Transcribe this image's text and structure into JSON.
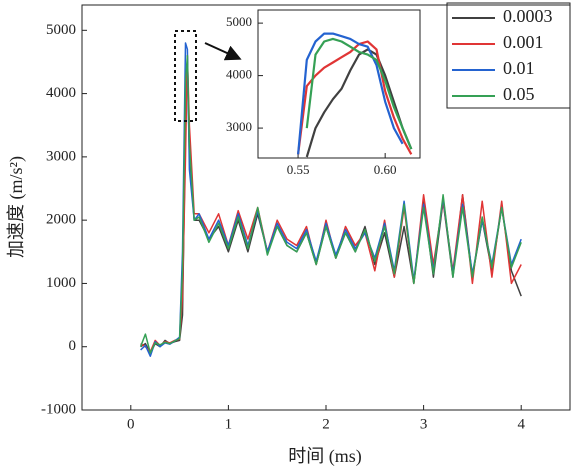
{
  "chart_data": [
    {
      "type": "line",
      "x_label": "时间 (ms)",
      "y_label": "加速度 (m/s²)",
      "x": [
        0.1,
        0.15,
        0.2,
        0.25,
        0.3,
        0.35,
        0.4,
        0.45,
        0.5,
        0.53,
        0.56,
        0.58,
        0.6,
        0.65,
        0.7,
        0.8,
        0.9,
        1.0,
        1.1,
        1.2,
        1.3,
        1.4,
        1.5,
        1.6,
        1.7,
        1.8,
        1.9,
        2.0,
        2.1,
        2.2,
        2.3,
        2.4,
        2.5,
        2.6,
        2.7,
        2.8,
        2.9,
        3.0,
        3.1,
        3.2,
        3.3,
        3.4,
        3.5,
        3.6,
        3.7,
        3.8,
        3.9,
        4.0
      ],
      "series": [
        {
          "name": "0.0003",
          "color": "#404040",
          "values": [
            0,
            50,
            -100,
            50,
            0,
            100,
            50,
            80,
            100,
            500,
            3500,
            4500,
            3000,
            2000,
            2000,
            1700,
            1900,
            1500,
            2000,
            1500,
            2100,
            1500,
            1900,
            1600,
            1500,
            1800,
            1300,
            1900,
            1400,
            1800,
            1500,
            1900,
            1300,
            1800,
            1100,
            1900,
            1000,
            2300,
            1100,
            2300,
            1100,
            2400,
            1100,
            2000,
            1200,
            2200,
            1200,
            800
          ]
        },
        {
          "name": "0.001",
          "color": "#e03535",
          "values": [
            50,
            0,
            -80,
            100,
            20,
            80,
            60,
            100,
            120,
            800,
            3000,
            4600,
            3500,
            2100,
            2100,
            1800,
            2100,
            1600,
            2150,
            1700,
            2200,
            1500,
            2000,
            1700,
            1600,
            1900,
            1300,
            2000,
            1400,
            1900,
            1600,
            1800,
            1200,
            2000,
            1100,
            2200,
            1000,
            2400,
            1300,
            2300,
            1200,
            2400,
            1000,
            2300,
            1100,
            2300,
            1000,
            1300
          ]
        },
        {
          "name": "0.01",
          "color": "#2463d0",
          "values": [
            -50,
            20,
            -150,
            80,
            0,
            60,
            40,
            90,
            150,
            1500,
            4800,
            4700,
            2800,
            2000,
            2100,
            1700,
            2000,
            1600,
            2100,
            1600,
            2150,
            1500,
            1950,
            1650,
            1550,
            1850,
            1350,
            1950,
            1450,
            1850,
            1550,
            1800,
            1400,
            1950,
            1200,
            2300,
            1050,
            2250,
            1200,
            2350,
            1150,
            2250,
            1150,
            2000,
            1300,
            2200,
            1300,
            1700
          ]
        },
        {
          "name": "0.05",
          "color": "#35a055",
          "values": [
            0,
            200,
            -100,
            60,
            30,
            70,
            50,
            90,
            130,
            1200,
            4200,
            4600,
            3200,
            2000,
            2050,
            1650,
            1950,
            1550,
            2050,
            1550,
            2200,
            1450,
            1900,
            1600,
            1500,
            1800,
            1300,
            1900,
            1400,
            1800,
            1500,
            1850,
            1350,
            1900,
            1150,
            2250,
            1000,
            2200,
            1150,
            2400,
            1100,
            2200,
            1100,
            2050,
            1250,
            2200,
            1250,
            1650
          ]
        }
      ],
      "xlim": [
        -0.5,
        4.5
      ],
      "xticks": [
        0,
        1,
        2,
        3,
        4
      ],
      "ylim": [
        -1000,
        5400
      ],
      "yticks": [
        -1000,
        0,
        1000,
        2000,
        3000,
        4000,
        5000
      ],
      "legend": "upper right"
    },
    {
      "type": "line",
      "x": [
        0.55,
        0.555,
        0.56,
        0.565,
        0.57,
        0.575,
        0.58,
        0.585,
        0.59,
        0.595,
        0.6,
        0.605,
        0.61,
        0.615
      ],
      "series": [
        {
          "color": "#404040",
          "values": [
            null,
            2450,
            3000,
            3300,
            3550,
            3750,
            4100,
            4400,
            4500,
            4400,
            4000,
            3500,
            3000,
            2600
          ]
        },
        {
          "color": "#e03535",
          "values": [
            2500,
            3800,
            4000,
            4150,
            4250,
            4350,
            4450,
            4600,
            4650,
            4500,
            3700,
            3200,
            2800,
            2500
          ]
        },
        {
          "color": "#2463d0",
          "values": [
            2500,
            4300,
            4650,
            4800,
            4800,
            4750,
            4700,
            4600,
            4550,
            4200,
            3500,
            3000,
            2700,
            null
          ]
        },
        {
          "color": "#35a055",
          "values": [
            null,
            3000,
            4400,
            4650,
            4700,
            4650,
            4550,
            4450,
            4400,
            4300,
            3900,
            3400,
            3000,
            2600
          ]
        }
      ],
      "xlim": [
        0.527,
        0.62
      ],
      "xticks": [
        0.55,
        {
          "value": 0.6,
          "label": "0.60"
        }
      ],
      "ylim": [
        2430,
        5250
      ],
      "yticks": [
        3000,
        4000,
        5000
      ]
    }
  ]
}
